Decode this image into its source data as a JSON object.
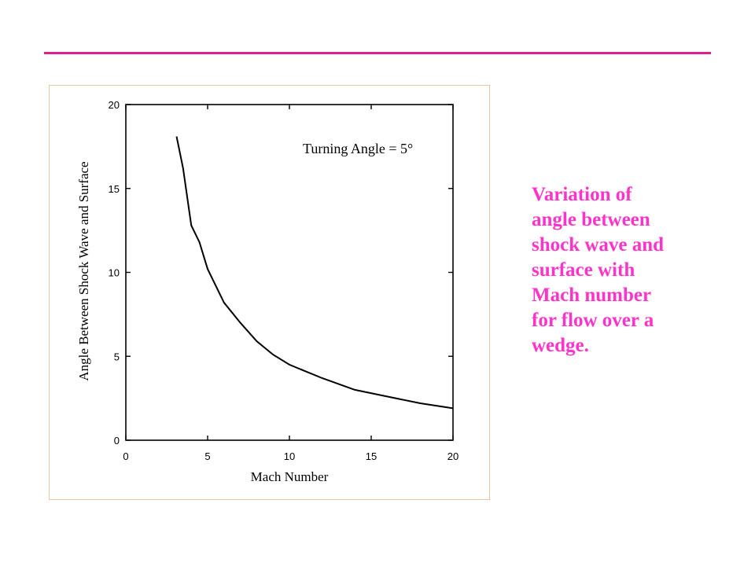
{
  "slide": {
    "caption": "Variation of\nangle between\nshock wave and\nsurface with\nMach number\nfor flow over a\nwedge.",
    "accent_color": "#e0208a",
    "caption_color": "#ff33cc"
  },
  "chart_data": {
    "type": "line",
    "title": "",
    "annotation": "Turning Angle = 5°",
    "xlabel": "Mach Number",
    "ylabel": "Angle Between Shock Wave and Surface",
    "xlim": [
      0,
      20
    ],
    "ylim": [
      0,
      20
    ],
    "xticks": [
      0,
      5,
      10,
      15,
      20
    ],
    "yticks": [
      0,
      5,
      10,
      15,
      20
    ],
    "grid": false,
    "series": [
      {
        "x": [
          3.1,
          3.5,
          4,
          4.5,
          5,
          6,
          7,
          8,
          9,
          10,
          12,
          14,
          16,
          18,
          20
        ],
        "y": [
          18.1,
          16.2,
          12.8,
          11.8,
          10.2,
          8.2,
          7.0,
          5.9,
          5.1,
          4.5,
          3.7,
          3.0,
          2.6,
          2.2,
          1.9
        ]
      }
    ]
  }
}
